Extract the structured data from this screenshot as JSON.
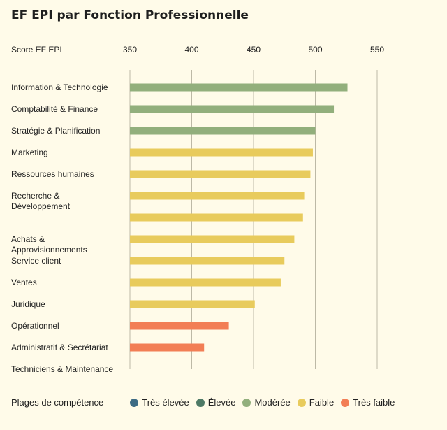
{
  "chart_data": {
    "type": "bar",
    "orientation": "horizontal",
    "title": "EF EPI par Fonction Professionnelle",
    "xlabel": "Score EF EPI",
    "xlim": [
      350,
      570
    ],
    "xticks": [
      350,
      400,
      450,
      500,
      550
    ],
    "grid": true,
    "categories": [
      "Information & Technologie",
      "Comptabilité & Finance",
      "Stratégie & Planification",
      "Marketing",
      "Ressources humaines",
      "Recherche & Développement",
      "",
      "Achats & Approvisionnements",
      "Service client",
      "Ventes",
      "Juridique",
      "Opérationnel",
      "Administratif & Secrétariat",
      "Techniciens & Maintenance"
    ],
    "category_lines": [
      [
        "Information & Technologie"
      ],
      [
        "Comptabilité & Finance"
      ],
      [
        "Stratégie & Planification"
      ],
      [
        "Marketing"
      ],
      [
        "Ressources humaines"
      ],
      [
        "Recherche &",
        "Développement"
      ],
      [],
      [
        "Achats &",
        "Approvisionnements"
      ],
      [
        "Service client"
      ],
      [
        "Ventes"
      ],
      [
        "Juridique"
      ],
      [
        "Opérationnel"
      ],
      [
        "Administratif & Secrétariat"
      ],
      [
        "Techniciens & Maintenance"
      ]
    ],
    "values": [
      526,
      515,
      500,
      498,
      496,
      491,
      490,
      483,
      475,
      472,
      451,
      430,
      410,
      null
    ],
    "levels": [
      "moderee",
      "moderee",
      "moderee",
      "faible",
      "faible",
      "faible",
      "faible",
      "faible",
      "faible",
      "faible",
      "faible",
      "tres_faible",
      "tres_faible",
      null
    ],
    "legend": {
      "title": "Plages de compétence",
      "placement": "bottom",
      "items": [
        {
          "key": "tres_elevee",
          "label": "Très élevée",
          "color": "#3d6b84"
        },
        {
          "key": "elevee",
          "label": "Élevée",
          "color": "#4e7a66"
        },
        {
          "key": "moderee",
          "label": "Modérée",
          "color": "#92af7c"
        },
        {
          "key": "faible",
          "label": "Faible",
          "color": "#e8cb5c"
        },
        {
          "key": "tres_faible",
          "label": "Très faible",
          "color": "#f27e55"
        }
      ]
    }
  }
}
